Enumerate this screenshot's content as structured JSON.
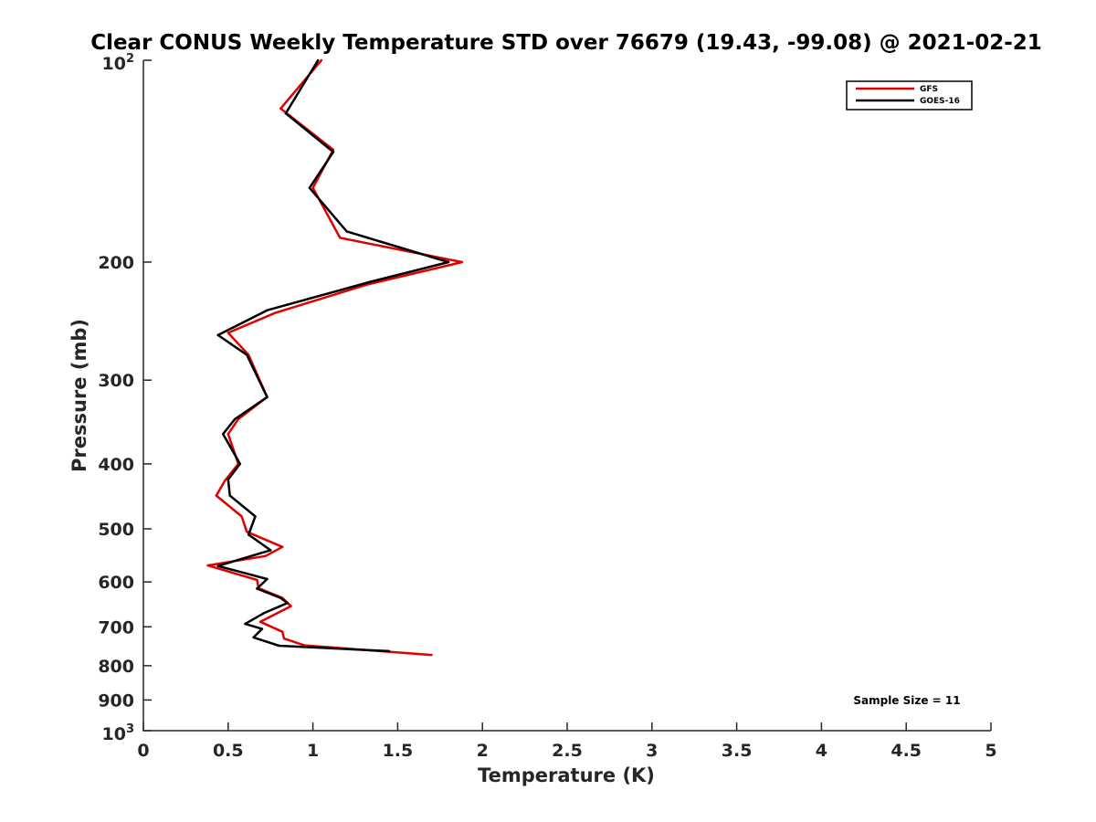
{
  "chart_data": {
    "type": "line",
    "title": "Clear CONUS Weekly Temperature STD over 76679 (19.43, -99.08) @ 2021-02-21",
    "xlabel": "Temperature (K)",
    "ylabel": "Pressure (mb)",
    "xlim": [
      0,
      5
    ],
    "ylim": [
      100,
      1000
    ],
    "y_scale": "log",
    "y_reversed": true,
    "grid": false,
    "legend_position": "top-right",
    "x_ticks": [
      0,
      0.5,
      1,
      1.5,
      2,
      2.5,
      3,
      3.5,
      4,
      4.5,
      5
    ],
    "x_tick_labels": [
      "0",
      "0.5",
      "1",
      "1.5",
      "2",
      "2.5",
      "3",
      "3.5",
      "4",
      "4.5",
      "5"
    ],
    "y_ticks": [
      100,
      200,
      300,
      400,
      500,
      600,
      700,
      800,
      900,
      1000
    ],
    "y_tick_labels": [
      {
        "base": "10",
        "exp": "2"
      },
      {
        "base": "200"
      },
      {
        "base": "300"
      },
      {
        "base": "400"
      },
      {
        "base": "500"
      },
      {
        "base": "600"
      },
      {
        "base": "700"
      },
      {
        "base": "800"
      },
      {
        "base": "900"
      },
      {
        "base": "10",
        "exp": "3"
      }
    ],
    "annotation": "Sample Size = 11",
    "series": [
      {
        "name": "GFS",
        "color": "#e00000",
        "points": [
          [
            1.05,
            100
          ],
          [
            0.81,
            118
          ],
          [
            1.12,
            136
          ],
          [
            1.0,
            155
          ],
          [
            1.16,
            184
          ],
          [
            1.88,
            200
          ],
          [
            1.32,
            216
          ],
          [
            0.78,
            238
          ],
          [
            0.5,
            255
          ],
          [
            0.62,
            275
          ],
          [
            0.73,
            318
          ],
          [
            0.56,
            343
          ],
          [
            0.5,
            361
          ],
          [
            0.56,
            400
          ],
          [
            0.48,
            424
          ],
          [
            0.43,
            446
          ],
          [
            0.58,
            479
          ],
          [
            0.61,
            505
          ],
          [
            0.82,
            532
          ],
          [
            0.72,
            549
          ],
          [
            0.38,
            567
          ],
          [
            0.67,
            596
          ],
          [
            0.68,
            613
          ],
          [
            0.82,
            634
          ],
          [
            0.87,
            652
          ],
          [
            0.69,
            688
          ],
          [
            0.82,
            712
          ],
          [
            0.83,
            729
          ],
          [
            0.95,
            746
          ],
          [
            1.7,
            771
          ]
        ]
      },
      {
        "name": "GOES-16",
        "color": "#000000",
        "points": [
          [
            1.03,
            100
          ],
          [
            0.84,
            120
          ],
          [
            1.12,
            137
          ],
          [
            0.98,
            155
          ],
          [
            1.2,
            180
          ],
          [
            1.8,
            200
          ],
          [
            1.34,
            214
          ],
          [
            0.73,
            236
          ],
          [
            0.44,
            257
          ],
          [
            0.61,
            275
          ],
          [
            0.73,
            318
          ],
          [
            0.54,
            343
          ],
          [
            0.47,
            361
          ],
          [
            0.57,
            400
          ],
          [
            0.5,
            422
          ],
          [
            0.51,
            446
          ],
          [
            0.66,
            479
          ],
          [
            0.62,
            510
          ],
          [
            0.75,
            538
          ],
          [
            0.44,
            568
          ],
          [
            0.73,
            594
          ],
          [
            0.67,
            614
          ],
          [
            0.81,
            634
          ],
          [
            0.85,
            645
          ],
          [
            0.71,
            668
          ],
          [
            0.6,
            693
          ],
          [
            0.7,
            705
          ],
          [
            0.65,
            726
          ],
          [
            0.8,
            747
          ],
          [
            1.45,
            761
          ]
        ]
      }
    ]
  }
}
